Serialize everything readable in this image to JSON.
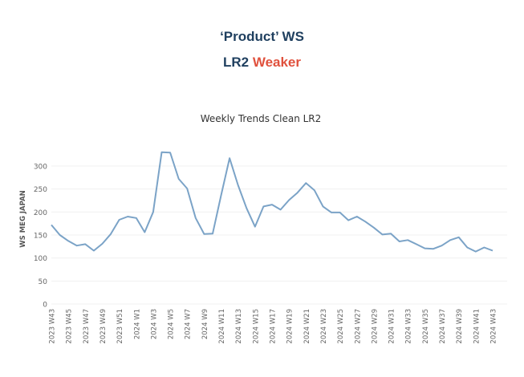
{
  "header": {
    "title": "‘Product’ WS",
    "subtitle_prefix": "LR2",
    "subtitle_status": "Weaker",
    "status_color": "#e0513d",
    "title_color": "#1f3f5f"
  },
  "chart_data": {
    "type": "line",
    "title": "Weekly Trends Clean LR2",
    "xlabel": "",
    "ylabel": "WS MEG JAPAN",
    "ylim": [
      0,
      340
    ],
    "yticks": [
      0,
      50,
      100,
      150,
      200,
      250,
      300
    ],
    "grid": true,
    "line_color": "#7ba3c7",
    "x": [
      "2023 W43",
      "2023 W44",
      "2023 W45",
      "2023 W46",
      "2023 W47",
      "2023 W48",
      "2023 W49",
      "2023 W50",
      "2023 W51",
      "2023 W52",
      "2024 W1",
      "2024 W2",
      "2024 W3",
      "2024 W4",
      "2024 W5",
      "2024 W6",
      "2024 W7",
      "2024 W8",
      "2024 W9",
      "2024 W10",
      "2024 W11",
      "2024 W12",
      "2024 W13",
      "2024 W14",
      "2024 W15",
      "2024 W16",
      "2024 W17",
      "2024 W18",
      "2024 W19",
      "2024 W20",
      "2024 W21",
      "2024 W22",
      "2024 W23",
      "2024 W24",
      "2024 W25",
      "2024 W26",
      "2024 W27",
      "2024 W28",
      "2024 W29",
      "2024 W30",
      "2024 W31",
      "2024 W32",
      "2024 W33",
      "2024 W34",
      "2024 W35",
      "2024 W36",
      "2024 W37",
      "2024 W38",
      "2024 W39",
      "2024 W40",
      "2024 W41",
      "2024 W42",
      "2024 W43"
    ],
    "x_tick_labels": [
      "2023 W43",
      "2023 W45",
      "2023 W47",
      "2023 W49",
      "2023 W51",
      "2024 W1",
      "2024 W3",
      "2024 W5",
      "2024 W7",
      "2024 W9",
      "2024 W11",
      "2024 W13",
      "2024 W15",
      "2024 W17",
      "2024 W19",
      "2024 W21",
      "2024 W23",
      "2024 W25",
      "2024 W27",
      "2024 W29",
      "2024 W31",
      "2024 W33",
      "2024 W35",
      "2024 W37",
      "2024 W39",
      "2024 W41",
      "2024 W43"
    ],
    "series": [
      {
        "name": "WS MEG JAPAN",
        "values": [
          172,
          150,
          137,
          127,
          130,
          116,
          131,
          152,
          183,
          190,
          187,
          156,
          200,
          330,
          329,
          272,
          251,
          187,
          152,
          153,
          236,
          317,
          258,
          208,
          168,
          212,
          216,
          205,
          226,
          242,
          263,
          247,
          212,
          199,
          199,
          182,
          190,
          179,
          166,
          151,
          153,
          136,
          139,
          130,
          121,
          120,
          127,
          139,
          145,
          123,
          114,
          123,
          116
        ]
      }
    ]
  }
}
